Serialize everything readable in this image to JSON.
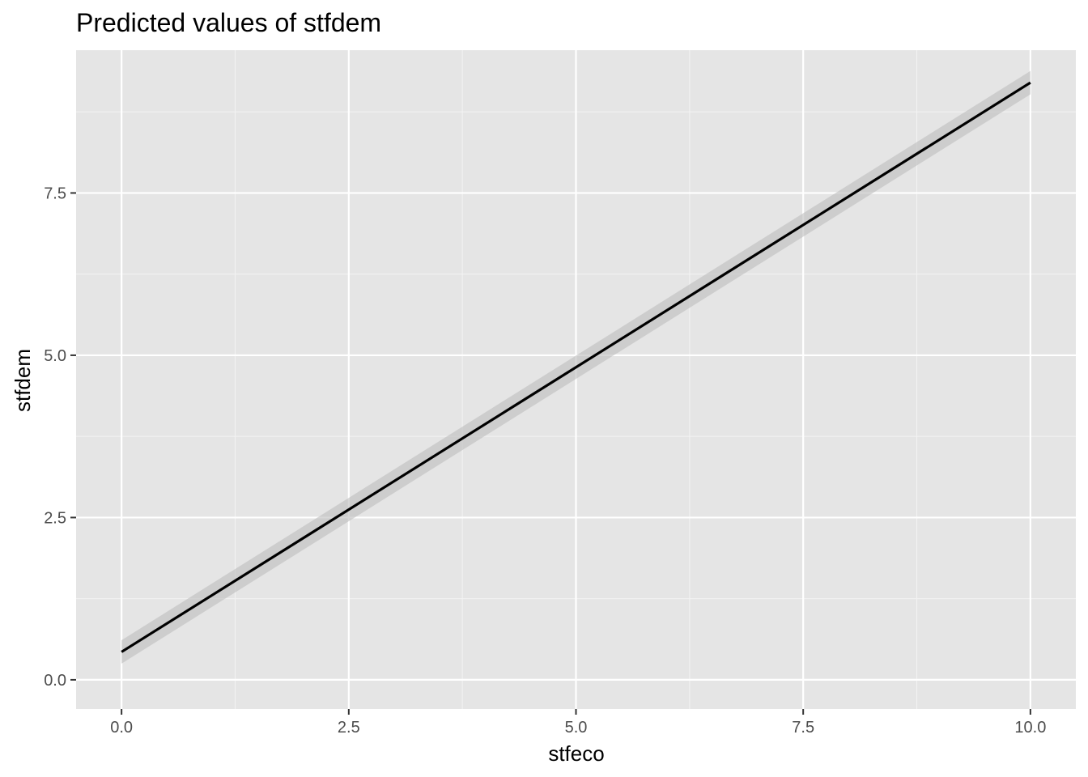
{
  "chart_data": {
    "type": "line",
    "title": "Predicted values of stfdem",
    "xlabel": "stfeco",
    "ylabel": "stfdem",
    "xlim": [
      -0.5,
      10.5
    ],
    "ylim": [
      -0.45,
      9.7
    ],
    "x_ticks": [
      0.0,
      2.5,
      5.0,
      7.5,
      10.0
    ],
    "x_tick_labels": [
      "0.0",
      "2.5",
      "5.0",
      "7.5",
      "10.0"
    ],
    "y_ticks": [
      0.0,
      2.5,
      5.0,
      7.5
    ],
    "y_tick_labels": [
      "0.0",
      "2.5",
      "5.0",
      "7.5"
    ],
    "grid": true,
    "legend": "none",
    "series": [
      {
        "x": [
          0,
          10
        ],
        "y": [
          0.43,
          9.2
        ],
        "ci_low": [
          0.25,
          9.02
        ],
        "ci_high": [
          0.61,
          9.38
        ]
      }
    ],
    "colors": {
      "panel_background": "#e5e5e5",
      "grid_major": "#ffffff",
      "grid_minor": "#f2f2f2",
      "line": "#000000",
      "ribbon": "#bdbdbd",
      "tick": "#333333"
    }
  }
}
